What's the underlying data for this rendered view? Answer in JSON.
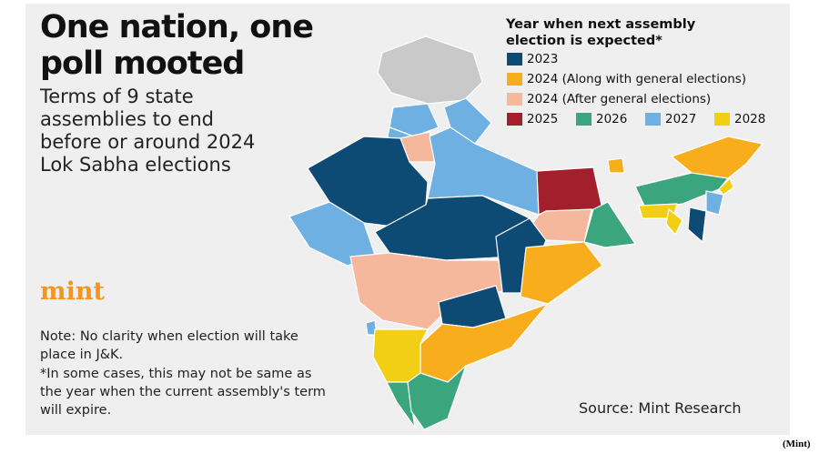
{
  "title": "One nation, one poll mooted",
  "subtitle": "Terms of 9 state assemblies to end before or around 2024 Lok Sabha elections",
  "brand": "mint",
  "notes": [
    "Note: No clarity when election will take place in J&K.",
    "*In some cases, this may not be same as the year when the current assembly's term will expire."
  ],
  "legend": {
    "title": "Year when next assembly election is expected*",
    "items": [
      {
        "label": "2023",
        "color": "#0d4a74"
      },
      {
        "label": "2024 (Along with general elections)",
        "color": "#f8ad1d"
      },
      {
        "label": "2024 (After general elections)",
        "color": "#f6b89c"
      },
      {
        "label": "2025",
        "color": "#a31f2b"
      },
      {
        "label": "2026",
        "color": "#3aa57f"
      },
      {
        "label": "2027",
        "color": "#6fb0e2"
      },
      {
        "label": "2028",
        "color": "#f2cf14"
      }
    ]
  },
  "source": "Source: Mint Research",
  "credit": "(Mint)"
}
